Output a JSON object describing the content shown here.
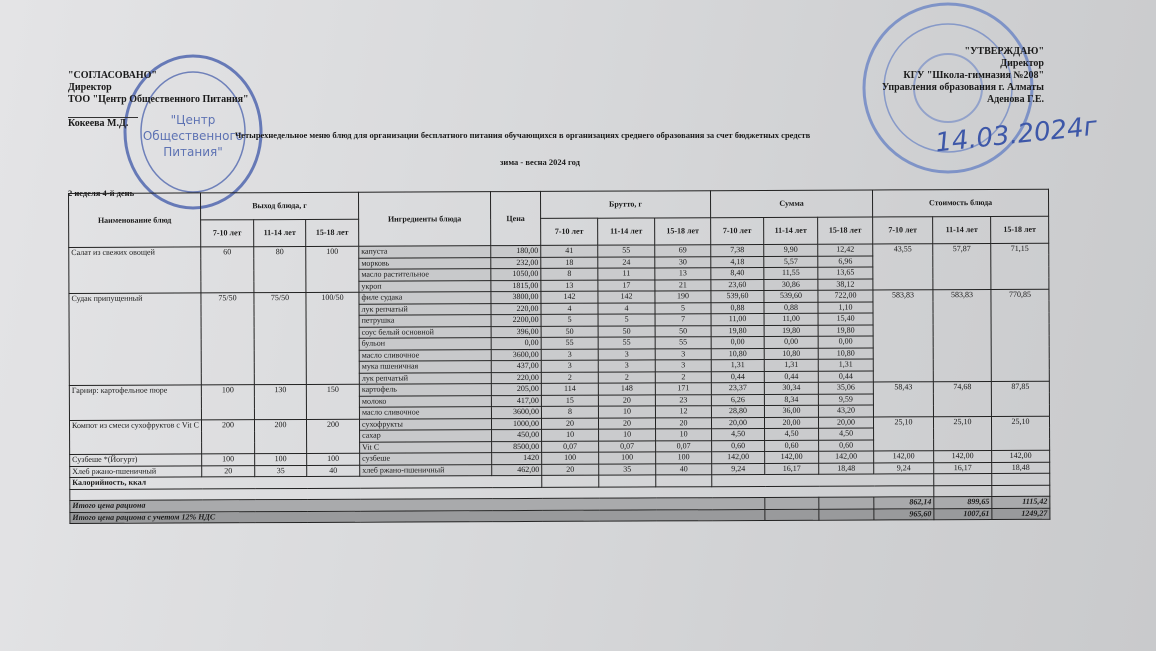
{
  "approval_left": {
    "heading": "\"СОГЛАСОВАНО\"",
    "position": "Директор",
    "org": "ТОО \"Центр Общественного Питания\"",
    "name": "Кокеева М.Д.",
    "stamp_text": "Центр Общественного Питания"
  },
  "approval_right": {
    "heading": "\"УТВЕРЖДАЮ\"",
    "position": "Директор",
    "org": "КГУ \"Школа-гимназия №208\"",
    "dept": "Управления образования г. Алматы",
    "name": "Аденова Г.Е.",
    "handwritten_date": "14.03.2024г"
  },
  "title": "Четырехнедельное меню блюд для организации бесплатного питания обучающихся в организациях среднего образования за счет бюджетных средств",
  "subtitle": "зима - весна 2024 год",
  "week": "2 неделя 4-й день",
  "table": {
    "headers": {
      "dish": "Наименование блюд",
      "yield": "Выход блюда, г",
      "ingredients": "Ингредиенты блюда",
      "price": "Цена",
      "gross": "Брутто, г",
      "sum": "Сумма",
      "cost": "Стоимость блюда",
      "ages": [
        "7-10 лет",
        "11-14 лет",
        "15-18 лет"
      ]
    },
    "dishes": [
      {
        "name": "Салат из свежих овощей",
        "yield": [
          "60",
          "80",
          "100"
        ],
        "cost": [
          "43,55",
          "57,87",
          "71,15"
        ],
        "ingredients": [
          {
            "name": "капуста",
            "price": "180,00",
            "gross": [
              "41",
              "55",
              "69"
            ],
            "sum": [
              "7,38",
              "9,90",
              "12,42"
            ]
          },
          {
            "name": "морковь",
            "price": "232,00",
            "gross": [
              "18",
              "24",
              "30"
            ],
            "sum": [
              "4,18",
              "5,57",
              "6,96"
            ]
          },
          {
            "name": "масло растительное",
            "price": "1050,00",
            "gross": [
              "8",
              "11",
              "13"
            ],
            "sum": [
              "8,40",
              "11,55",
              "13,65"
            ]
          },
          {
            "name": "укроп",
            "price": "1815,00",
            "gross": [
              "13",
              "17",
              "21"
            ],
            "sum": [
              "23,60",
              "30,86",
              "38,12"
            ]
          }
        ]
      },
      {
        "name": "Судак припущенный",
        "yield": [
          "75/50",
          "75/50",
          "100/50"
        ],
        "cost": [
          "583,83",
          "583,83",
          "770,85"
        ],
        "ingredients": [
          {
            "name": "филе судака",
            "price": "3800,00",
            "gross": [
              "142",
              "142",
              "190"
            ],
            "sum": [
              "539,60",
              "539,60",
              "722,00"
            ]
          },
          {
            "name": "лук репчатый",
            "price": "220,00",
            "gross": [
              "4",
              "4",
              "5"
            ],
            "sum": [
              "0,88",
              "0,88",
              "1,10"
            ]
          },
          {
            "name": "петрушка",
            "price": "2200,00",
            "gross": [
              "5",
              "5",
              "7"
            ],
            "sum": [
              "11,00",
              "11,00",
              "15,40"
            ]
          },
          {
            "name": "соус белый основной",
            "price": "396,00",
            "gross": [
              "50",
              "50",
              "50"
            ],
            "sum": [
              "19,80",
              "19,80",
              "19,80"
            ]
          },
          {
            "name": "бульон",
            "price": "0,00",
            "gross": [
              "55",
              "55",
              "55"
            ],
            "sum": [
              "0,00",
              "0,00",
              "0,00"
            ]
          },
          {
            "name": "масло сливочное",
            "price": "3600,00",
            "gross": [
              "3",
              "3",
              "3"
            ],
            "sum": [
              "10,80",
              "10,80",
              "10,80"
            ]
          },
          {
            "name": "мука пшеничная",
            "price": "437,00",
            "gross": [
              "3",
              "3",
              "3"
            ],
            "sum": [
              "1,31",
              "1,31",
              "1,31"
            ]
          },
          {
            "name": "лук репчатый",
            "price": "220,00",
            "gross": [
              "2",
              "2",
              "2"
            ],
            "sum": [
              "0,44",
              "0,44",
              "0,44"
            ]
          }
        ]
      },
      {
        "name": "Гарнир:  картофельное пюре",
        "yield": [
          "100",
          "130",
          "150"
        ],
        "cost": [
          "58,43",
          "74,68",
          "87,85"
        ],
        "ingredients": [
          {
            "name": "картофель",
            "price": "205,00",
            "gross": [
              "114",
              "148",
              "171"
            ],
            "sum": [
              "23,37",
              "30,34",
              "35,06"
            ]
          },
          {
            "name": "молоко",
            "price": "417,00",
            "gross": [
              "15",
              "20",
              "23"
            ],
            "sum": [
              "6,26",
              "8,34",
              "9,59"
            ]
          },
          {
            "name": "масло сливочное",
            "price": "3600,00",
            "gross": [
              "8",
              "10",
              "12"
            ],
            "sum": [
              "28,80",
              "36,00",
              "43,20"
            ]
          }
        ]
      },
      {
        "name": "Компот из смеси сухофруктов с Vit C",
        "yield": [
          "200",
          "200",
          "200"
        ],
        "cost": [
          "25,10",
          "25,10",
          "25,10"
        ],
        "ingredients": [
          {
            "name": "сухофрукты",
            "price": "1000,00",
            "gross": [
              "20",
              "20",
              "20"
            ],
            "sum": [
              "20,00",
              "20,00",
              "20,00"
            ]
          },
          {
            "name": "сахар",
            "price": "450,00",
            "gross": [
              "10",
              "10",
              "10"
            ],
            "sum": [
              "4,50",
              "4,50",
              "4,50"
            ]
          },
          {
            "name": "Vit C",
            "price": "8500,00",
            "gross": [
              "0,07",
              "0,07",
              "0,07"
            ],
            "sum": [
              "0,60",
              "0,60",
              "0,60"
            ]
          }
        ]
      },
      {
        "name": "Сузбеше *(Йогурт)",
        "yield": [
          "100",
          "100",
          "100"
        ],
        "cost": [
          "142,00",
          "142,00",
          "142,00"
        ],
        "ingredients": [
          {
            "name": "сузбеше",
            "price": "1420",
            "gross": [
              "100",
              "100",
              "100"
            ],
            "sum": [
              "142,00",
              "142,00",
              "142,00"
            ]
          }
        ]
      },
      {
        "name": "Хлеб ржано-пшеничный",
        "yield": [
          "20",
          "35",
          "40"
        ],
        "cost": [
          "9,24",
          "16,17",
          "18,48"
        ],
        "ingredients": [
          {
            "name": "хлеб ржано-пшеничный",
            "price": "462,00",
            "gross": [
              "20",
              "35",
              "40"
            ],
            "sum": [
              "9,24",
              "16,17",
              "18,48"
            ]
          }
        ]
      }
    ],
    "calories_label": "Калорийность, ккал",
    "total_label": "Итого цена рациона",
    "total": [
      "862,14",
      "899,65",
      "1115,42"
    ],
    "total_vat_label": "Итого цена рациона с учетом 12% НДС",
    "total_vat": [
      "965,60",
      "1007,61",
      "1249,27"
    ]
  },
  "colors": {
    "stamp_blue": "#3d57a8",
    "paper": "#d9dadc"
  }
}
